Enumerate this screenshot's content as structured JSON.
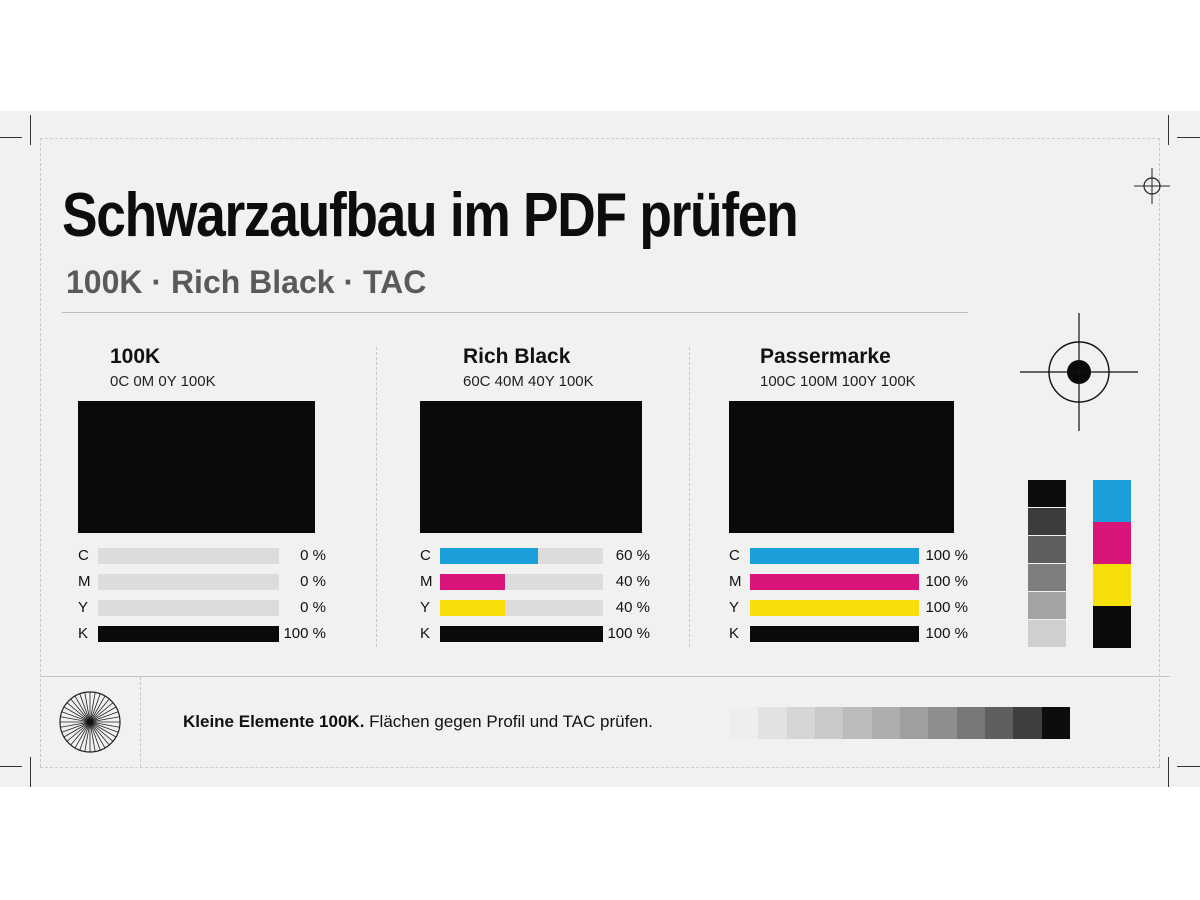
{
  "title": "Schwarzaufbau im PDF prüfen",
  "subtitle": "100K · Rich Black · TAC",
  "columns": [
    {
      "title": "100K",
      "formula": "0C 0M 0Y 100K",
      "bars": [
        {
          "letter": "C",
          "value": 0,
          "label": "0 %",
          "color": "#1a9fdb"
        },
        {
          "letter": "M",
          "value": 0,
          "label": "0 %",
          "color": "#d9157a"
        },
        {
          "letter": "Y",
          "value": 0,
          "label": "0 %",
          "color": "#f7df0a"
        },
        {
          "letter": "K",
          "value": 100,
          "label": "100 %",
          "color": "#0a0a0a"
        }
      ]
    },
    {
      "title": "Rich Black",
      "formula": "60C 40M 40Y 100K",
      "bars": [
        {
          "letter": "C",
          "value": 60,
          "label": "60 %",
          "color": "#1a9fdb"
        },
        {
          "letter": "M",
          "value": 40,
          "label": "40 %",
          "color": "#d9157a"
        },
        {
          "letter": "Y",
          "value": 40,
          "label": "40 %",
          "color": "#f7df0a"
        },
        {
          "letter": "K",
          "value": 100,
          "label": "100 %",
          "color": "#0a0a0a"
        }
      ]
    },
    {
      "title": "Passermarke",
      "formula": "100C 100M 100Y 100K",
      "bars": [
        {
          "letter": "C",
          "value": 100,
          "label": "100 %",
          "color": "#1a9fdb"
        },
        {
          "letter": "M",
          "value": 100,
          "label": "100 %",
          "color": "#d9157a"
        },
        {
          "letter": "Y",
          "value": 100,
          "label": "100 %",
          "color": "#f7df0a"
        },
        {
          "letter": "K",
          "value": 100,
          "label": "100 %",
          "color": "#0a0a0a"
        }
      ]
    }
  ],
  "footer": {
    "bold": "Kleine Elemente 100K.",
    "text": "Flächen gegen Profil und TAC prüfen."
  },
  "gray_scale_bar": [
    "#0d0d0d",
    "#3c3c3c",
    "#5f5f5f",
    "#7e7e7e",
    "#a3a3a3",
    "#cfcfcf"
  ],
  "cmyk_bar": [
    "#1a9fdb",
    "#d9157a",
    "#f7df0a",
    "#0a0a0a"
  ],
  "footer_gradient": [
    "#eeeeee",
    "#e2e2e2",
    "#d6d6d6",
    "#c9c9c9",
    "#bcbcbc",
    "#aeaeae",
    "#9f9f9f",
    "#8e8e8e",
    "#787878",
    "#5f5f5f",
    "#3f3f3f",
    "#0d0d0d"
  ],
  "icons": [
    "registration-mark-icon",
    "starburst-icon",
    "crop-mark-icon"
  ]
}
